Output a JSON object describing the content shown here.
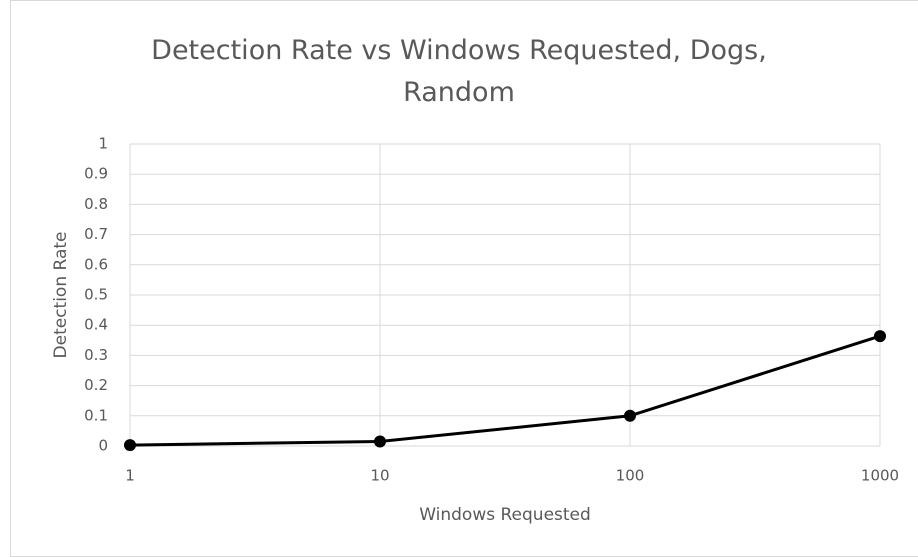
{
  "chart_data": {
    "type": "line",
    "title": "Detection Rate vs Windows Requested, Dogs, Random",
    "x_label": "Windows Requested",
    "y_label": "Detection Rate",
    "x": [
      1,
      10,
      100,
      1000
    ],
    "series": [
      {
        "name": "Detection Rate",
        "color": "#000000",
        "values": [
          0.003,
          0.015,
          0.1,
          0.364
        ]
      }
    ],
    "xlim": [
      1,
      1000
    ],
    "xticks": [
      1,
      10,
      100,
      1000
    ],
    "x_log": true,
    "ylim": [
      0,
      1
    ],
    "yticks": [
      0,
      0.1,
      0.2,
      0.3,
      0.4,
      0.5,
      0.6,
      0.7,
      0.8,
      0.9,
      1
    ],
    "grid": true
  }
}
